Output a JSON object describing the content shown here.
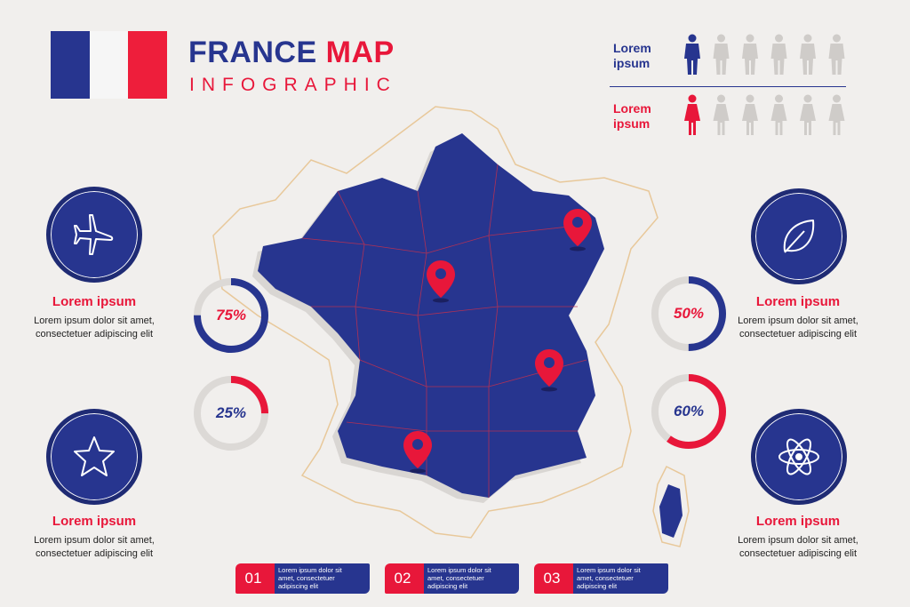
{
  "header": {
    "title_part1": "FRANCE",
    "title_part2": "MAP",
    "subtitle": "INFOGRAPHIC"
  },
  "flag_colors": [
    "#27358f",
    "#f6f6f6",
    "#ee1e3b"
  ],
  "population": {
    "male": {
      "label": "Lorem ipsum",
      "highlighted": 1,
      "total": 6,
      "color": "#27358f"
    },
    "female": {
      "label": "Lorem ipsum",
      "highlighted": 1,
      "total": 6,
      "color": "#e8173a"
    }
  },
  "features": {
    "top_left": {
      "icon": "airplane-icon",
      "title": "Lorem ipsum",
      "text1": "Lorem ipsum dolor sit amet,",
      "text2": "consectetuer adipiscing elit"
    },
    "bottom_left": {
      "icon": "star-icon",
      "title": "Lorem ipsum",
      "text1": "Lorem ipsum dolor sit amet,",
      "text2": "consectetuer adipiscing elit"
    },
    "top_right": {
      "icon": "leaf-icon",
      "title": "Lorem ipsum",
      "text1": "Lorem ipsum dolor sit amet,",
      "text2": "consectetuer adipiscing elit"
    },
    "bottom_right": {
      "icon": "atom-icon",
      "title": "Lorem ipsum",
      "text1": "Lorem ipsum dolor sit amet,",
      "text2": "consectetuer adipiscing elit"
    }
  },
  "donuts": [
    {
      "label": "75%",
      "value": 0.75,
      "color": "#27358f"
    },
    {
      "label": "25%",
      "value": 0.25,
      "color": "#e8173a"
    },
    {
      "label": "50%",
      "value": 0.5,
      "color": "#27358f"
    },
    {
      "label": "60%",
      "value": 0.6,
      "color": "#e8173a"
    }
  ],
  "tabs": [
    {
      "num": "01",
      "line1": "Lorem ipsum dolor sit",
      "line2": "amet, consectetuer",
      "line3": "adipiscing elit"
    },
    {
      "num": "02",
      "line1": "Lorem ipsum dolor sit",
      "line2": "amet, consectetuer",
      "line3": "adipiscing elit"
    },
    {
      "num": "03",
      "line1": "Lorem ipsum dolor sit",
      "line2": "amet, consectetuer",
      "line3": "adipiscing elit"
    }
  ],
  "map": {
    "land_color": "#27358f",
    "border_color": "#e8c89a",
    "pin_color": "#e8173a",
    "pins": [
      "location-pin-icon",
      "location-pin-icon",
      "location-pin-icon",
      "location-pin-icon"
    ]
  }
}
